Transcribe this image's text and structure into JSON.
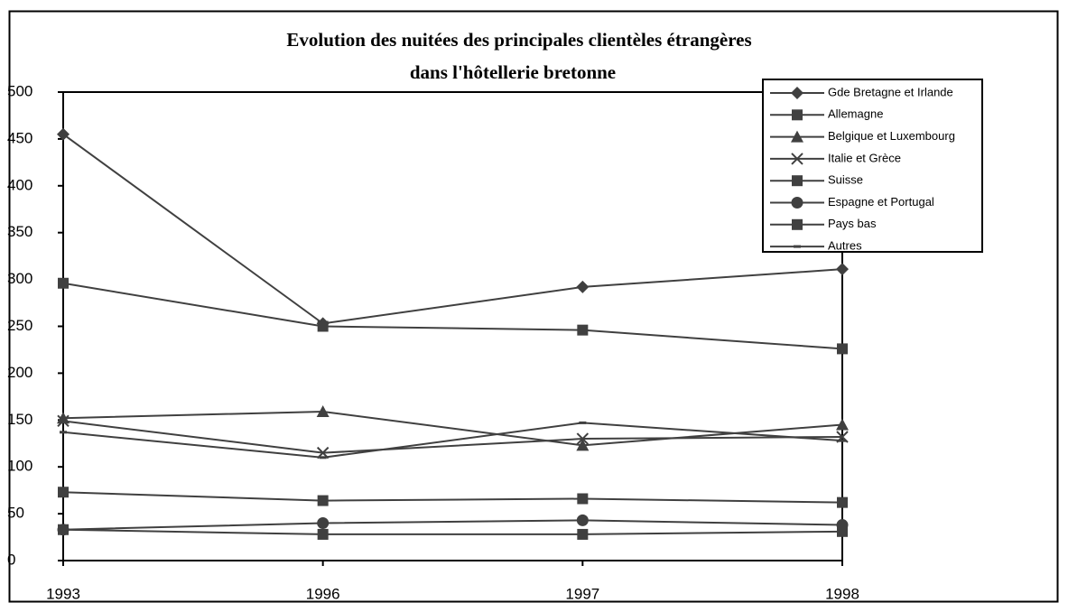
{
  "chart_data": {
    "type": "line",
    "title": [
      "Evolution des nuitées des principales clientèles étrangères",
      "dans l'hôtellerie bretonne"
    ],
    "categories": [
      "1993",
      "1996",
      "1997",
      "1998"
    ],
    "ylim": [
      0,
      500
    ],
    "yticks": [
      0,
      50,
      100,
      150,
      200,
      250,
      300,
      350,
      400,
      450,
      500
    ],
    "legend": "top-right",
    "series": [
      {
        "name": "Gde Bretagne et Irlande",
        "color": "#404040",
        "marker": "diamond",
        "values": [
          455,
          253,
          292,
          311
        ]
      },
      {
        "name": "Allemagne",
        "color": "#404040",
        "marker": "square",
        "values": [
          296,
          250,
          246,
          226
        ]
      },
      {
        "name": "Belgique et Luxembourg",
        "color": "#404040",
        "marker": "triangle",
        "values": [
          152,
          159,
          123,
          145
        ]
      },
      {
        "name": "Italie et Grèce",
        "color": "#404040",
        "marker": "x",
        "values": [
          149,
          115,
          130,
          132
        ]
      },
      {
        "name": "Suisse",
        "color": "#404040",
        "marker": "square",
        "values": [
          33,
          28,
          28,
          31
        ]
      },
      {
        "name": "Espagne et Portugal",
        "color": "#404040",
        "marker": "circle",
        "values": [
          33,
          40,
          43,
          38
        ]
      },
      {
        "name": "Pays bas",
        "color": "#404040",
        "marker": "square",
        "values": [
          73,
          64,
          66,
          62
        ]
      },
      {
        "name": "Autres",
        "color": "#404040",
        "marker": "dash",
        "values": [
          137,
          110,
          147,
          128
        ]
      }
    ]
  }
}
